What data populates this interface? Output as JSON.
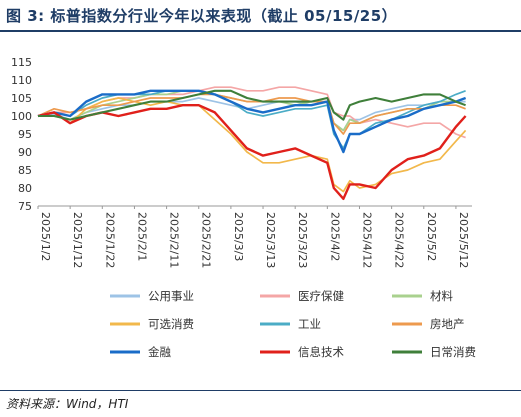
{
  "header": {
    "title": "图 3:   标普指数分行业今年以来表现（截止 05/15/25）"
  },
  "footer": {
    "source": "资料来源：Wind，HTI"
  },
  "chart_data": {
    "type": "line",
    "title": "",
    "xlabel": "",
    "ylabel": "",
    "ylim": [
      75,
      115
    ],
    "yticks": [
      75,
      80,
      85,
      90,
      95,
      100,
      105,
      110,
      115
    ],
    "grid": false,
    "legend_position": "bottom",
    "xticks": [
      "2025/1/2",
      "2025/1/12",
      "2025/1/22",
      "2025/2/1",
      "2025/2/11",
      "2025/2/21",
      "2025/3/3",
      "2025/3/13",
      "2025/3/23",
      "2025/4/2",
      "2025/4/12",
      "2025/4/22",
      "2025/5/2",
      "2025/5/12"
    ],
    "dates": [
      "2025/1/2",
      "2025/1/7",
      "2025/1/12",
      "2025/1/17",
      "2025/1/22",
      "2025/1/27",
      "2025/2/1",
      "2025/2/6",
      "2025/2/11",
      "2025/2/16",
      "2025/2/21",
      "2025/2/26",
      "2025/3/3",
      "2025/3/8",
      "2025/3/13",
      "2025/3/18",
      "2025/3/23",
      "2025/3/28",
      "2025/4/2",
      "2025/4/4",
      "2025/4/7",
      "2025/4/9",
      "2025/4/12",
      "2025/4/17",
      "2025/4/22",
      "2025/4/27",
      "2025/5/2",
      "2025/5/7",
      "2025/5/12",
      "2025/5/15"
    ],
    "series": [
      {
        "name": "公用事业",
        "color": "#9dc3e6",
        "values": [
          100,
          100.5,
          99,
          101,
          102,
          103,
          103,
          104,
          104,
          104,
          105,
          104,
          103,
          102,
          103,
          104,
          104,
          103,
          104,
          98,
          96,
          99,
          99,
          101,
          102,
          103,
          103,
          104,
          104,
          104
        ]
      },
      {
        "name": "医疗保健",
        "color": "#f4a6a6",
        "values": [
          100,
          101,
          101,
          102,
          104,
          105,
          105,
          106,
          106,
          106,
          107,
          108,
          108,
          107,
          107,
          108,
          108,
          107,
          106,
          101,
          100,
          100,
          98,
          99,
          98,
          97,
          98,
          98,
          95,
          94
        ]
      },
      {
        "name": "材料",
        "color": "#a9d18e",
        "values": [
          100,
          100,
          99,
          101,
          103,
          104,
          105,
          106,
          106,
          107,
          107,
          106,
          105,
          104,
          104,
          104,
          103,
          104,
          104,
          98,
          96,
          99,
          98,
          100,
          101,
          102,
          102,
          104,
          104,
          105
        ]
      },
      {
        "name": "可选消费",
        "color": "#f2b84b",
        "values": [
          100,
          101,
          98,
          102,
          104,
          105,
          104,
          103,
          104,
          103,
          103,
          99,
          95,
          90,
          87,
          87,
          88,
          89,
          88,
          81,
          79,
          82,
          80,
          81,
          84,
          85,
          87,
          88,
          93,
          96
        ]
      },
      {
        "name": "工业",
        "color": "#4bacc6",
        "values": [
          100,
          101,
          100,
          103,
          105,
          106,
          106,
          106,
          107,
          107,
          107,
          106,
          104,
          101,
          100,
          101,
          102,
          102,
          103,
          95,
          91,
          95,
          95,
          98,
          99,
          101,
          103,
          104,
          106,
          107
        ]
      },
      {
        "name": "房地产",
        "color": "#ed9a4e",
        "values": [
          100,
          102,
          101,
          102,
          103,
          103,
          104,
          105,
          105,
          105,
          106,
          106,
          105,
          104,
          104,
          105,
          105,
          104,
          104,
          98,
          95,
          98,
          98,
          100,
          101,
          102,
          102,
          103,
          103,
          102
        ]
      },
      {
        "name": "金融",
        "color": "#1a6cc8",
        "values": [
          100,
          101,
          100,
          104,
          106,
          106,
          106,
          107,
          107,
          107,
          107,
          106,
          104,
          102,
          101,
          102,
          103,
          103,
          104,
          96,
          90,
          95,
          95,
          97,
          99,
          100,
          102,
          103,
          104,
          105
        ]
      },
      {
        "name": "信息技术",
        "color": "#e0201b",
        "values": [
          100,
          101,
          98,
          100,
          101,
          100,
          101,
          102,
          102,
          103,
          103,
          101,
          96,
          91,
          89,
          90,
          91,
          89,
          87,
          80,
          77,
          81,
          81,
          80,
          85,
          88,
          89,
          91,
          97,
          100
        ]
      },
      {
        "name": "日常消费",
        "color": "#3f7f3a",
        "values": [
          100,
          100,
          99,
          100,
          101,
          102,
          103,
          104,
          104,
          105,
          106,
          107,
          107,
          105,
          104,
          104,
          104,
          104,
          105,
          101,
          99,
          103,
          104,
          105,
          104,
          105,
          106,
          106,
          104,
          103
        ]
      }
    ]
  }
}
